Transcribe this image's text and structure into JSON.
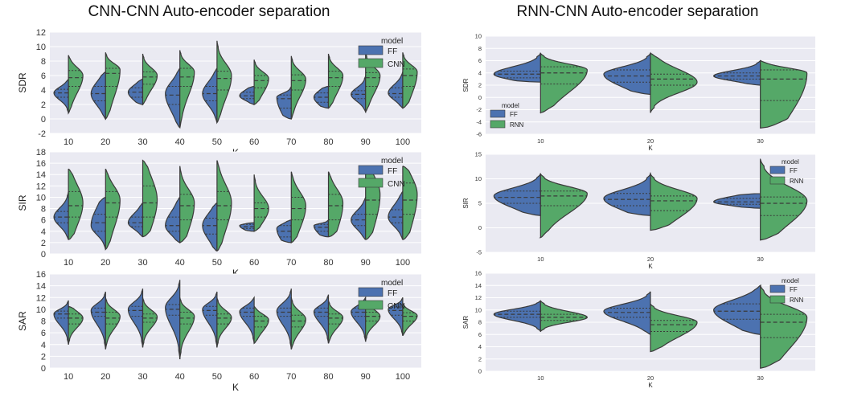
{
  "titles": {
    "left": "CNN-CNN Auto-encoder separation",
    "right": "RNN-CNN Auto-encoder separation"
  },
  "colors": {
    "ff": "#4c72b0",
    "other": "#55a868",
    "background": "#eaeaf2",
    "grid": "#ffffff",
    "edge": "#3a3a3a"
  },
  "chart_data": [
    {
      "id": "cnn-sdr",
      "type": "violin",
      "split": true,
      "xlabel": "K",
      "ylabel": "SDR",
      "ylim": [
        -2,
        12
      ],
      "yticks": [
        -2,
        0,
        2,
        4,
        6,
        8,
        10,
        12
      ],
      "categories": [
        "10",
        "20",
        "30",
        "40",
        "50",
        "60",
        "70",
        "80",
        "90",
        "100"
      ],
      "legend": {
        "title": "model",
        "entries": [
          "FF",
          "CNN"
        ],
        "placement": "top-right"
      },
      "series": [
        {
          "name": "FF",
          "min": [
            0.8,
            0,
            2,
            -1.2,
            -0.5,
            2,
            0,
            1.5,
            1,
            1.5
          ],
          "max": [
            5.5,
            6.5,
            5.5,
            7,
            7,
            4.5,
            4.5,
            4.5,
            6,
            6.5
          ],
          "q1": [
            3,
            2.5,
            3,
            2,
            2.5,
            2.8,
            1.5,
            2.3,
            2.8,
            3
          ],
          "median": [
            3.6,
            3.5,
            3.7,
            3.3,
            3.5,
            3.2,
            2.8,
            3,
            3.4,
            3.5
          ],
          "q3": [
            4.1,
            4.5,
            4.3,
            4.5,
            4.5,
            3.7,
            3.3,
            3.6,
            3.9,
            4.3
          ],
          "mode": [
            3.6,
            3.5,
            3.7,
            3.5,
            3.5,
            3.2,
            3,
            3,
            3.4,
            3.6
          ]
        },
        {
          "name": "CNN",
          "min": [
            0.8,
            0,
            2,
            -1.2,
            -0.5,
            2,
            0,
            1.5,
            1,
            1.5
          ],
          "max": [
            8.8,
            9.2,
            9,
            9.5,
            10.8,
            8.2,
            8.7,
            9,
            9.2,
            9.2
          ],
          "q1": [
            4.5,
            4.5,
            4.8,
            4.5,
            4,
            4.3,
            4,
            4.5,
            4.5,
            4.5
          ],
          "median": [
            5.7,
            6.3,
            5.8,
            5.8,
            5.6,
            5.3,
            5.3,
            5.7,
            5.7,
            6
          ],
          "q3": [
            6.7,
            7,
            6.5,
            7,
            6.6,
            6,
            6.1,
            6.6,
            6.4,
            6.9
          ],
          "mode": [
            6,
            6.8,
            6,
            6.5,
            6,
            5.6,
            5.5,
            6,
            6,
            6.5
          ]
        }
      ]
    },
    {
      "id": "cnn-sir",
      "type": "violin",
      "split": true,
      "xlabel": "K",
      "ylabel": "SIR",
      "ylim": [
        0,
        18
      ],
      "yticks": [
        0,
        2,
        4,
        6,
        8,
        10,
        12,
        14,
        16,
        18
      ],
      "categories": [
        "10",
        "20",
        "30",
        "40",
        "50",
        "60",
        "70",
        "80",
        "90",
        "100"
      ],
      "legend": {
        "title": "model",
        "entries": [
          "FF",
          "CNN"
        ],
        "placement": "top-right"
      },
      "series": [
        {
          "name": "FF",
          "min": [
            2.5,
            0.8,
            3,
            2,
            0.5,
            4,
            2,
            3,
            2.5,
            2.5
          ],
          "max": [
            11,
            10,
            9,
            10,
            9,
            5.5,
            6,
            6,
            10,
            11
          ],
          "q1": [
            5.5,
            4,
            4.8,
            4,
            3.5,
            4.5,
            3,
            4,
            5,
            5.5
          ],
          "median": [
            6.5,
            5.5,
            5.5,
            5,
            5,
            4.8,
            4,
            4.7,
            6,
            6.5
          ],
          "q3": [
            7.5,
            7,
            6.5,
            6.5,
            6.3,
            5.2,
            5,
            5.2,
            7,
            7.8
          ],
          "mode": [
            6.5,
            5,
            5.5,
            5,
            5,
            5,
            4.5,
            5,
            6,
            6.5
          ]
        },
        {
          "name": "CNN",
          "min": [
            2.5,
            0.8,
            3,
            2,
            0.5,
            4,
            2,
            3,
            2.5,
            2.5
          ],
          "max": [
            15,
            15,
            16.5,
            15.5,
            16.5,
            14,
            14.5,
            14.5,
            15.5,
            15.5
          ],
          "q1": [
            6.5,
            6.5,
            6.5,
            6,
            6,
            6.5,
            6,
            6,
            7,
            7
          ],
          "median": [
            8.5,
            9,
            9,
            8.5,
            8.5,
            8,
            8,
            8.5,
            9.5,
            9.5
          ],
          "q3": [
            11,
            11,
            12,
            10.5,
            11,
            9,
            10,
            10.5,
            12.5,
            12.5
          ],
          "mode": [
            9,
            9.5,
            9.5,
            9,
            9,
            8,
            8.5,
            9,
            10.5,
            10.5
          ]
        }
      ]
    },
    {
      "id": "cnn-sar",
      "type": "violin",
      "split": true,
      "xlabel": "K",
      "ylabel": "SAR",
      "ylim": [
        0,
        16
      ],
      "yticks": [
        0,
        2,
        4,
        6,
        8,
        10,
        12,
        14,
        16
      ],
      "categories": [
        "10",
        "20",
        "30",
        "40",
        "50",
        "60",
        "70",
        "80",
        "90",
        "100"
      ],
      "legend": {
        "title": "model",
        "entries": [
          "FF",
          "CNN"
        ],
        "placement": "top-right"
      },
      "series": [
        {
          "name": "FF",
          "min": [
            4,
            3.2,
            3.5,
            1.5,
            3.5,
            4.2,
            3.2,
            4.2,
            4.5,
            5.5
          ],
          "max": [
            11.5,
            13,
            13.5,
            15,
            13,
            12,
            13.5,
            12.5,
            12,
            12
          ],
          "q1": [
            8.5,
            8.8,
            8.8,
            9,
            9,
            8.8,
            8.8,
            8.8,
            8.8,
            9
          ],
          "median": [
            9.2,
            9.5,
            9.8,
            10,
            9.8,
            9.5,
            9.5,
            9.5,
            9.5,
            9.8
          ],
          "q3": [
            9.7,
            10.2,
            10.5,
            10.8,
            10.5,
            10.2,
            10.2,
            10.2,
            10.2,
            10.4
          ],
          "mode": [
            9.2,
            9.8,
            10,
            10.3,
            10,
            9.6,
            9.7,
            9.6,
            9.6,
            10
          ]
        },
        {
          "name": "CNN",
          "min": [
            4,
            3.2,
            3.5,
            1.5,
            3.5,
            4.2,
            3.2,
            4.2,
            4.5,
            5.5
          ],
          "max": [
            10.5,
            12,
            12,
            12,
            12,
            10.5,
            12,
            11.5,
            11.5,
            11
          ],
          "q1": [
            7.5,
            7.5,
            7.8,
            7.5,
            7.5,
            7,
            7,
            7.5,
            8,
            8
          ],
          "median": [
            8.5,
            8.5,
            8.5,
            8.5,
            8.5,
            8,
            8,
            8.5,
            8.8,
            8.8
          ],
          "q3": [
            9.2,
            9.5,
            9.2,
            9.5,
            9.2,
            8.8,
            9,
            9.2,
            9.5,
            9.4
          ],
          "mode": [
            8.5,
            8.8,
            8.7,
            8.8,
            8.6,
            8.2,
            8.3,
            8.6,
            8.8,
            8.9
          ]
        }
      ]
    },
    {
      "id": "rnn-sdr",
      "type": "violin",
      "split": true,
      "xlabel": "K",
      "ylabel": "SDR",
      "ylim": [
        -6,
        10
      ],
      "yticks": [
        -6,
        -4,
        -2,
        0,
        2,
        4,
        6,
        8,
        10
      ],
      "categories": [
        "10",
        "20",
        "30"
      ],
      "legend": {
        "title": "model",
        "entries": [
          "FF",
          "RNN"
        ],
        "placement": "lower-left"
      },
      "series": [
        {
          "name": "FF",
          "min": [
            2.5,
            0.5,
            2
          ],
          "max": [
            7.2,
            7.2,
            6
          ],
          "q1": [
            3.2,
            2.5,
            3
          ],
          "median": [
            3.8,
            3.5,
            3.5
          ],
          "q3": [
            4.3,
            4.5,
            4
          ],
          "mode": [
            3.8,
            3.8,
            3.5
          ]
        },
        {
          "name": "RNN",
          "min": [
            -2.5,
            -2.5,
            -5
          ],
          "max": [
            7.2,
            7.2,
            6
          ],
          "q1": [
            2.2,
            2,
            -0.5
          ],
          "median": [
            4,
            3,
            3
          ],
          "q3": [
            5,
            3.8,
            4.5
          ],
          "mode": [
            4.5,
            2.5,
            4
          ]
        }
      ]
    },
    {
      "id": "rnn-sir",
      "type": "violin",
      "split": true,
      "xlabel": "K",
      "ylabel": "SIR",
      "ylim": [
        -5,
        15
      ],
      "yticks": [
        -5,
        0,
        5,
        10,
        15
      ],
      "categories": [
        "10",
        "20",
        "30"
      ],
      "legend": {
        "title": "model",
        "entries": [
          "FF",
          "RNN"
        ],
        "placement": "top-right"
      },
      "series": [
        {
          "name": "FF",
          "min": [
            2.5,
            2.5,
            4
          ],
          "max": [
            11,
            11,
            7
          ],
          "q1": [
            5,
            4.5,
            4.8
          ],
          "median": [
            6.2,
            5.8,
            5.3
          ],
          "q3": [
            7.5,
            7,
            6
          ],
          "mode": [
            6.5,
            6,
            5.3
          ]
        },
        {
          "name": "RNN",
          "min": [
            -2,
            -0.5,
            -2.5
          ],
          "max": [
            11,
            11,
            14
          ],
          "q1": [
            4.5,
            3.5,
            2.5
          ],
          "median": [
            6.5,
            5.5,
            5
          ],
          "q3": [
            7.5,
            6.5,
            6.3
          ],
          "mode": [
            7,
            6,
            5.5
          ]
        }
      ]
    },
    {
      "id": "rnn-sar",
      "type": "violin",
      "split": true,
      "xlabel": "K",
      "ylabel": "SAR",
      "ylim": [
        0,
        16
      ],
      "yticks": [
        0,
        2,
        4,
        6,
        8,
        10,
        12,
        14,
        16
      ],
      "categories": [
        "10",
        "20",
        "30"
      ],
      "legend": {
        "title": "model",
        "entries": [
          "FF",
          "RNN"
        ],
        "placement": "top-right"
      },
      "series": [
        {
          "name": "FF",
          "min": [
            6.5,
            6,
            6
          ],
          "max": [
            11.5,
            13,
            14
          ],
          "q1": [
            8.8,
            8.8,
            8.5
          ],
          "median": [
            9.3,
            9.6,
            9.8
          ],
          "q3": [
            9.8,
            10.3,
            11
          ],
          "mode": [
            9.3,
            9.8,
            10
          ]
        },
        {
          "name": "RNN",
          "min": [
            6.5,
            3.2,
            0.5
          ],
          "max": [
            11.5,
            11,
            14
          ],
          "q1": [
            8.3,
            6.5,
            5.5
          ],
          "median": [
            8.8,
            7.6,
            8
          ],
          "q3": [
            9.3,
            8.3,
            9.3
          ],
          "mode": [
            8.8,
            8,
            8.8
          ]
        }
      ]
    }
  ]
}
